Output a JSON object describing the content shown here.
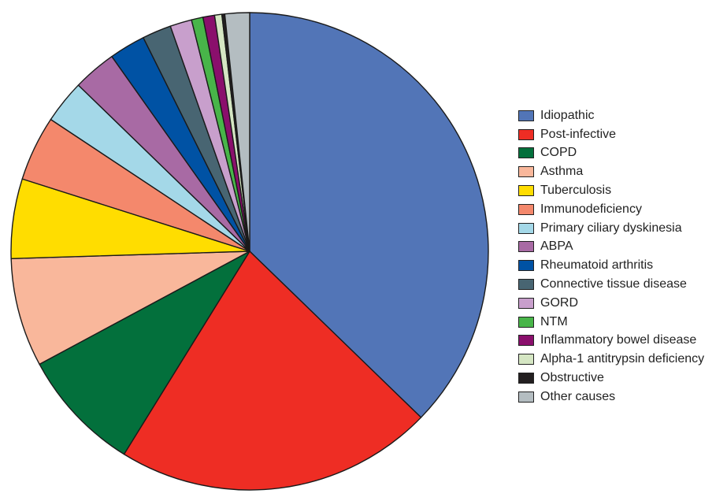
{
  "chart_data": {
    "type": "pie",
    "title": "",
    "start": "12 o'clock",
    "direction": "clockwise",
    "legend_placement": "right",
    "slices": [
      {
        "label": "Idiopathic",
        "value": 38.0,
        "color": "#5275b7"
      },
      {
        "label": "Post-infective",
        "value": 22.0,
        "color": "#ee2d24"
      },
      {
        "label": "COPD",
        "value": 8.5,
        "color": "#03703c"
      },
      {
        "label": "Asthma",
        "value": 7.5,
        "color": "#f9b79b"
      },
      {
        "label": "Tuberculosis",
        "value": 5.5,
        "color": "#ffdd00"
      },
      {
        "label": "Immunodeficiency",
        "value": 4.5,
        "color": "#f4886c"
      },
      {
        "label": "Primary ciliary dyskinesia",
        "value": 3.0,
        "color": "#a4d8e8"
      },
      {
        "label": "ABPA",
        "value": 3.0,
        "color": "#a86aa4"
      },
      {
        "label": "Rheumatoid arthritis",
        "value": 2.5,
        "color": "#0052a4"
      },
      {
        "label": "Connective tissue disease",
        "value": 2.0,
        "color": "#486572"
      },
      {
        "label": "GORD",
        "value": 1.5,
        "color": "#c89fcc"
      },
      {
        "label": "NTM",
        "value": 0.8,
        "color": "#48b549"
      },
      {
        "label": "Inflammatory bowel disease",
        "value": 0.8,
        "color": "#8a0f6c"
      },
      {
        "label": "Alpha-1 antitrypsin deficiency",
        "value": 0.5,
        "color": "#d5e6c3"
      },
      {
        "label": "Obstructive",
        "value": 0.2,
        "color": "#231f20"
      },
      {
        "label": "Other causes",
        "value": 1.7,
        "color": "#b4bdc1"
      }
    ]
  }
}
